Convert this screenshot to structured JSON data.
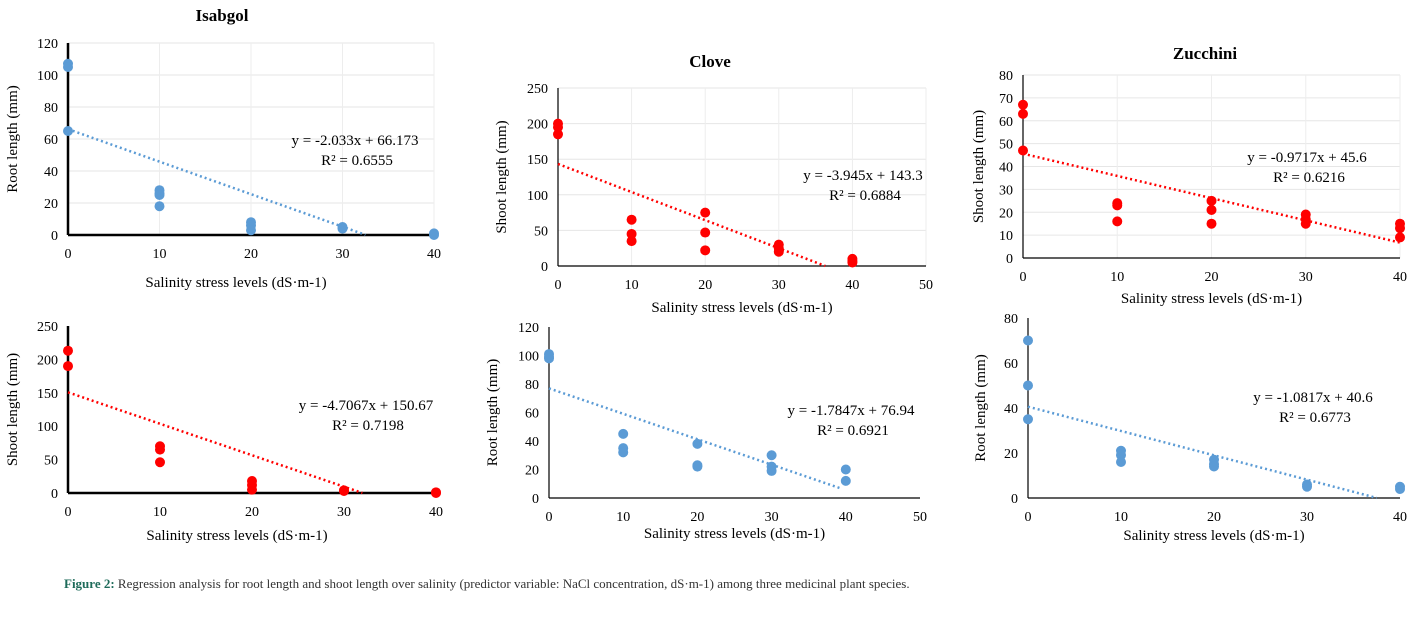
{
  "chart_data": [
    {
      "id": "isabgol-root",
      "type": "scatter",
      "title": "Isabgol",
      "xlabel": "Salinity stress levels (dS·m-1)",
      "ylabel": "Root length (mm)",
      "xlim": [
        0,
        40
      ],
      "ylim": [
        0,
        120
      ],
      "xticks": [
        0,
        10,
        20,
        30,
        40
      ],
      "yticks": [
        0,
        20,
        40,
        60,
        80,
        100,
        120
      ],
      "color": "#5b9bd5",
      "grid": true,
      "points": [
        [
          0,
          107
        ],
        [
          0,
          105
        ],
        [
          0,
          65
        ],
        [
          10,
          28
        ],
        [
          10,
          26
        ],
        [
          10,
          25
        ],
        [
          10,
          18
        ],
        [
          20,
          8
        ],
        [
          20,
          6
        ],
        [
          20,
          3
        ],
        [
          30,
          5
        ],
        [
          30,
          4
        ],
        [
          40,
          1
        ],
        [
          40,
          0
        ]
      ],
      "trendline": {
        "slope": -2.033,
        "intercept": 66.173,
        "x_end": 32.5
      },
      "equation": "y = -2.033x + 66.173",
      "r2": "R² = 0.6555"
    },
    {
      "id": "clove-shoot",
      "type": "scatter",
      "title": "Clove",
      "xlabel": "Salinity stress levels (dS·m-1)",
      "ylabel": "Shoot length (mm)",
      "xlim": [
        0,
        50
      ],
      "ylim": [
        0,
        250
      ],
      "xticks": [
        0,
        10,
        20,
        30,
        40,
        50
      ],
      "yticks": [
        0,
        50,
        100,
        150,
        200,
        250
      ],
      "color": "#ff0000",
      "grid": true,
      "points": [
        [
          0,
          200
        ],
        [
          0,
          195
        ],
        [
          0,
          185
        ],
        [
          10,
          65
        ],
        [
          10,
          45
        ],
        [
          10,
          35
        ],
        [
          20,
          75
        ],
        [
          20,
          47
        ],
        [
          20,
          22
        ],
        [
          30,
          30
        ],
        [
          30,
          25
        ],
        [
          30,
          20
        ],
        [
          40,
          10
        ],
        [
          40,
          7
        ],
        [
          40,
          5
        ]
      ],
      "trendline": {
        "slope": -3.945,
        "intercept": 143.3,
        "x_end": 36.3
      },
      "equation": "y = -3.945x + 143.3",
      "r2": "R² = 0.6884"
    },
    {
      "id": "zucchini-shoot",
      "type": "scatter",
      "title": "Zucchini",
      "xlabel": "Salinity stress levels (dS·m-1)",
      "ylabel": "Shoot length (mm)",
      "xlim": [
        0,
        40
      ],
      "ylim": [
        0,
        80
      ],
      "xticks": [
        0,
        10,
        20,
        30,
        40
      ],
      "yticks": [
        0,
        10,
        20,
        30,
        40,
        50,
        60,
        70,
        80
      ],
      "color": "#ff0000",
      "grid": true,
      "points": [
        [
          0,
          67
        ],
        [
          0,
          63
        ],
        [
          0,
          47
        ],
        [
          10,
          24
        ],
        [
          10,
          23
        ],
        [
          10,
          16
        ],
        [
          20,
          25
        ],
        [
          20,
          21
        ],
        [
          20,
          15
        ],
        [
          30,
          19
        ],
        [
          30,
          17
        ],
        [
          30,
          15
        ],
        [
          40,
          15
        ],
        [
          40,
          13
        ],
        [
          40,
          9
        ]
      ],
      "trendline": {
        "slope": -0.9717,
        "intercept": 45.6,
        "x_end": 40
      },
      "equation": "y = -0.9717x + 45.6",
      "r2": "R² = 0.6216"
    },
    {
      "id": "isabgol-shoot",
      "type": "scatter",
      "title": "",
      "xlabel": "Salinity stress levels (dS·m-1)",
      "ylabel": "Shoot length (mm)",
      "xlim": [
        0,
        40
      ],
      "ylim": [
        0,
        250
      ],
      "xticks": [
        0,
        10,
        20,
        30,
        40
      ],
      "yticks": [
        0,
        50,
        100,
        150,
        200,
        250
      ],
      "color": "#ff0000",
      "grid": false,
      "points": [
        [
          0,
          213
        ],
        [
          0,
          190
        ],
        [
          10,
          70
        ],
        [
          10,
          65
        ],
        [
          10,
          46
        ],
        [
          20,
          18
        ],
        [
          20,
          12
        ],
        [
          20,
          5
        ],
        [
          30,
          4
        ],
        [
          30,
          3
        ],
        [
          40,
          1
        ],
        [
          40,
          0
        ]
      ],
      "trendline": {
        "slope": -4.7067,
        "intercept": 150.67,
        "x_end": 32.0
      },
      "equation": "y = -4.7067x + 150.67",
      "r2": "R² = 0.7198"
    },
    {
      "id": "clove-root",
      "type": "scatter",
      "title": "",
      "xlabel": "Salinity stress levels (dS·m-1)",
      "ylabel": "Root length (mm)",
      "xlim": [
        0,
        50
      ],
      "ylim": [
        0,
        120
      ],
      "xticks": [
        0,
        10,
        20,
        30,
        40,
        50
      ],
      "yticks": [
        0,
        20,
        40,
        60,
        80,
        100,
        120
      ],
      "color": "#5b9bd5",
      "grid": false,
      "points": [
        [
          0,
          101
        ],
        [
          0,
          99
        ],
        [
          0,
          98
        ],
        [
          10,
          45
        ],
        [
          10,
          35
        ],
        [
          10,
          32
        ],
        [
          20,
          38
        ],
        [
          20,
          23
        ],
        [
          20,
          22
        ],
        [
          30,
          30
        ],
        [
          30,
          22
        ],
        [
          30,
          19
        ],
        [
          40,
          20
        ],
        [
          40,
          12
        ]
      ],
      "trendline": {
        "slope": -1.7847,
        "intercept": 76.94,
        "x_end": 39.5
      },
      "equation": "y = -1.7847x + 76.94",
      "r2": "R² = 0.6921"
    },
    {
      "id": "zucchini-root",
      "type": "scatter",
      "title": "",
      "xlabel": "Salinity stress levels (dS·m-1)",
      "ylabel": "Root length (mm)",
      "xlim": [
        0,
        40
      ],
      "ylim": [
        0,
        80
      ],
      "xticks": [
        0,
        10,
        20,
        30,
        40
      ],
      "yticks": [
        0,
        20,
        40,
        60,
        80
      ],
      "color": "#5b9bd5",
      "grid": false,
      "points": [
        [
          0,
          70
        ],
        [
          0,
          50
        ],
        [
          0,
          35
        ],
        [
          10,
          21
        ],
        [
          10,
          19
        ],
        [
          10,
          16
        ],
        [
          20,
          17
        ],
        [
          20,
          15
        ],
        [
          20,
          14
        ],
        [
          30,
          6
        ],
        [
          30,
          5
        ],
        [
          40,
          5
        ],
        [
          40,
          4
        ]
      ],
      "trendline": {
        "slope": -1.0817,
        "intercept": 40.6,
        "x_end": 37.5
      },
      "equation": "y = -1.0817x + 40.6",
      "r2": "R² = 0.6773"
    }
  ],
  "caption": {
    "label": "Figure 2:",
    "text": " Regression analysis for root length and shoot length over salinity (predictor variable: NaCl concentration, dS·m-1) among three medicinal plant species."
  }
}
